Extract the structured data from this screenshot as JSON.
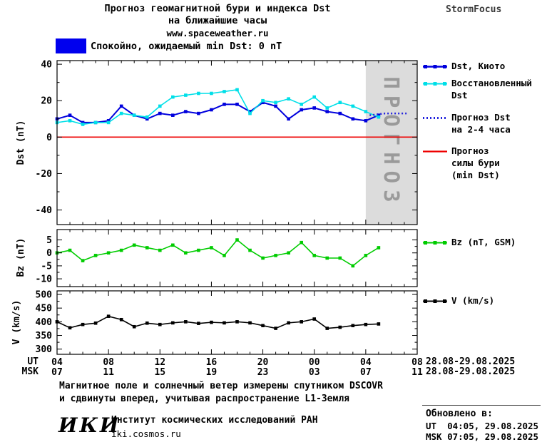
{
  "header": {
    "title_line1": "Прогноз геомагнитной бури и индекса Dst",
    "title_line2": "на ближайшие часы",
    "website": "www.spaceweather.ru",
    "brand": "StormFocus"
  },
  "status_banner": {
    "label": "Спокойно, ожидаемый min Dst: 0 nT"
  },
  "colors": {
    "dst_kyoto": "#0000dd",
    "dst_restored": "#00dfe8",
    "dst_forecast": "#2222dd",
    "storm_level": "#ee0000",
    "bz": "#00cc00",
    "v": "#000000",
    "banner": "#0000ee",
    "forecast_region": "#dcdcdc",
    "forecast_region_text": "#9a9a9a"
  },
  "chart_data": [
    {
      "type": "line",
      "ylabel": "Dst (nT)",
      "ylim": [
        -48,
        42
      ],
      "yticks": [
        40,
        20,
        0,
        -20,
        -40
      ],
      "xlim": [
        4,
        32
      ],
      "forecast_region": {
        "x_start": 28,
        "x_end": 32,
        "label": "ПРОГНОЗ"
      },
      "series": [
        {
          "name": "Dst, Киото",
          "color_key": "dst_kyoto",
          "width": 2,
          "marker": true,
          "x": [
            4,
            5,
            6,
            7,
            8,
            9,
            10,
            11,
            12,
            13,
            14,
            15,
            16,
            17,
            18,
            19,
            20,
            21,
            22,
            23,
            24,
            25,
            26,
            27,
            28,
            29
          ],
          "values": [
            10,
            12,
            8,
            8,
            9,
            17,
            12,
            10,
            13,
            12,
            14,
            13,
            15,
            18,
            18,
            14,
            19,
            17,
            10,
            15,
            16,
            14,
            13,
            10,
            9,
            12
          ]
        },
        {
          "name": "Восстановленный Dst",
          "color_key": "dst_restored",
          "width": 1.6,
          "marker": true,
          "x": [
            4,
            5,
            6,
            7,
            8,
            9,
            10,
            11,
            12,
            13,
            14,
            15,
            16,
            17,
            18,
            19,
            20,
            21,
            22,
            23,
            24,
            25,
            26,
            27,
            28,
            29
          ],
          "values": [
            8,
            9,
            7,
            8,
            8,
            13,
            12,
            11,
            17,
            22,
            23,
            24,
            24,
            25,
            26,
            13,
            20,
            19,
            21,
            18,
            22,
            16,
            19,
            17,
            14,
            11
          ]
        },
        {
          "name": "Прогноз Dst на 2-4 часа",
          "color_key": "dst_forecast",
          "dashed": true,
          "marker": false,
          "x": [
            28.3,
            29.5,
            30.6,
            31.3
          ],
          "values": [
            12,
            13,
            13,
            13
          ]
        },
        {
          "name": "Прогноз силы бури (min Dst)",
          "color_key": "storm_level",
          "width": 1.6,
          "marker": false,
          "x": [
            4,
            32
          ],
          "values": [
            0,
            0
          ]
        }
      ]
    },
    {
      "type": "line",
      "ylabel": "Bz (nT)",
      "ylim": [
        -13,
        9
      ],
      "yticks": [
        5,
        0,
        -5,
        -10
      ],
      "xlim": [
        4,
        32
      ],
      "series": [
        {
          "name": "Bz (nT, GSM)",
          "color_key": "bz",
          "width": 1.6,
          "marker": true,
          "x": [
            4,
            5,
            6,
            7,
            8,
            9,
            10,
            11,
            12,
            13,
            14,
            15,
            16,
            17,
            18,
            19,
            20,
            21,
            22,
            23,
            24,
            25,
            26,
            27,
            28,
            29
          ],
          "values": [
            0,
            1,
            -3,
            -1,
            0,
            1,
            3,
            2,
            1,
            3,
            0,
            1,
            2,
            -1,
            5,
            1,
            -2,
            -1,
            0,
            4,
            -1,
            -2,
            -2,
            -5,
            -1,
            2
          ]
        }
      ]
    },
    {
      "type": "line",
      "ylabel": "V (km/s)",
      "ylim": [
        281,
        513
      ],
      "yticks": [
        500,
        450,
        400,
        350,
        300
      ],
      "xlim": [
        4,
        32
      ],
      "series": [
        {
          "name": "V (km/s)",
          "color_key": "v",
          "width": 1.6,
          "marker": true,
          "x": [
            4,
            5,
            6,
            7,
            8,
            9,
            10,
            11,
            12,
            13,
            14,
            15,
            16,
            17,
            18,
            19,
            20,
            21,
            22,
            23,
            24,
            25,
            26,
            27,
            28,
            29
          ],
          "values": [
            400,
            378,
            390,
            395,
            420,
            408,
            382,
            395,
            390,
            396,
            400,
            394,
            398,
            396,
            400,
            396,
            386,
            376,
            396,
            400,
            410,
            376,
            380,
            386,
            390,
            392
          ]
        }
      ]
    }
  ],
  "x_axis": {
    "tick_hours": [
      4,
      8,
      12,
      16,
      20,
      24,
      28,
      32
    ],
    "ut_row_label": "UT",
    "msk_row_label": "MSK",
    "ut_labels": [
      "04",
      "08",
      "12",
      "16",
      "20",
      "00",
      "04",
      "08"
    ],
    "msk_labels": [
      "07",
      "11",
      "15",
      "19",
      "23",
      "03",
      "07",
      "11"
    ],
    "ut_date_range": "28.08-29.08.2025",
    "msk_date_range": "28.08-29.08.2025"
  },
  "legend": {
    "items": [
      {
        "lines": [
          "Dst, Киото"
        ]
      },
      {
        "lines": [
          "Восстановленный",
          "Dst"
        ]
      },
      {
        "lines": [
          "Прогноз Dst",
          "на 2-4 часа"
        ]
      },
      {
        "lines": [
          "Прогноз",
          "силы бури",
          "(min Dst)"
        ]
      },
      {
        "lines": [
          "Bz (nT, GSM)"
        ]
      },
      {
        "lines": [
          "V (km/s)"
        ]
      }
    ]
  },
  "footer": {
    "note_line1": "Магнитное поле и солнечный ветер измерены спутником DSCOVR",
    "note_line2": "и сдвинуты вперед, учитывая распространение L1-Земля",
    "updated_heading": "Обновлено в:",
    "updated_ut": "UT  04:05, 29.08.2025",
    "updated_msk": "MSK 07:05, 29.08.2025",
    "logo": "ИКИ",
    "institute": "Институт космических исследований РАН",
    "institute_url": "iki.cosmos.ru"
  }
}
